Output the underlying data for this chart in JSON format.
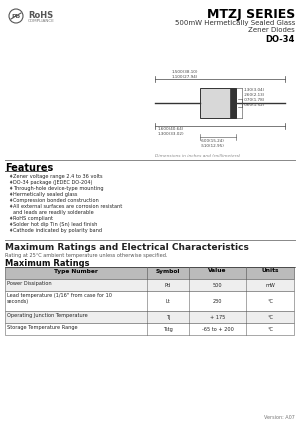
{
  "title": "MTZJ SERIES",
  "subtitle1": "500mW Hermetically Sealed Glass",
  "subtitle2": "Zener Diodes",
  "package": "DO-34",
  "features_title": "Features",
  "features": [
    "Zener voltage range 2.4 to 36 volts",
    "DO-34 package (JEDEC DO-204)",
    "Through-hole device-type mounting",
    "Hermetically sealed glass",
    "Compression bonded construction",
    "All external surfaces are corrosion resistant\nand leads are readily solderable",
    "RoHS compliant",
    "Solder hot dip Tin (Sn) lead finish",
    "Cathode indicated by polarity band"
  ],
  "section_title": "Maximum Ratings and Electrical Characteristics",
  "section_note": "Rating at 25°C ambient temperature unless otherwise specified.",
  "max_ratings_title": "Maximum Ratings",
  "table_headers": [
    "Type Number",
    "Symbol",
    "Value",
    "Units"
  ],
  "table_rows": [
    [
      "Power Dissipation",
      "Pd",
      "500",
      "mW"
    ],
    [
      "Lead temperature (1/16\" from case for 10\nseconds)",
      "Lt",
      "230",
      "°C"
    ],
    [
      "Operating Junction Temperature",
      "Tj",
      "+ 175",
      "°C"
    ],
    [
      "Storage Temperature Range",
      "Tstg",
      "-65 to + 200",
      "°C"
    ]
  ],
  "dim_note": "Dimensions in inches and (millimeters)",
  "version": "Version: A07",
  "bg_color": "#ffffff",
  "dim_line_color": "#444444",
  "body_fill": "#d8d8d8",
  "body_edge": "#333333",
  "band_fill": "#333333",
  "lead_color": "#333333",
  "header_bg": "#bbbbbb",
  "row0_bg": "#eeeeee",
  "row1_bg": "#ffffff",
  "table_ec": "#666666",
  "section_color": "#222222",
  "feature_bullet": "♦",
  "logo_color": "#555555"
}
